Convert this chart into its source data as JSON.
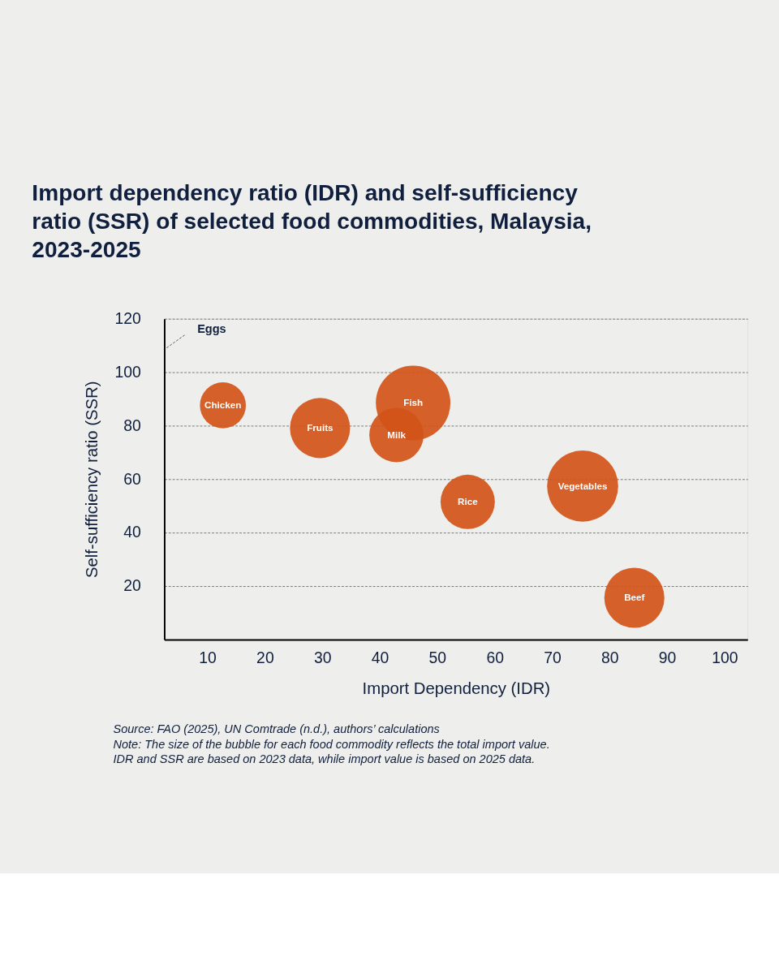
{
  "chart_data": {
    "type": "bubble",
    "title": "Import dependency ratio (IDR) and self-sufficiency ratio (SSR) of selected food commodities, Malaysia, 2023-2025",
    "xlabel": "Import Dependency (IDR)",
    "ylabel": "Self-sufficiency ratio (SSR)",
    "xlim": [
      2.5,
      104
    ],
    "ylim": [
      0,
      120
    ],
    "xticks": [
      10,
      20,
      30,
      40,
      50,
      60,
      70,
      80,
      90,
      100
    ],
    "yticks": [
      20,
      40,
      60,
      80,
      100,
      120
    ],
    "grid": "y",
    "legend": false,
    "series": [
      {
        "name": "Chicken",
        "color": "#d35418",
        "x": [
          12.7
        ],
        "values": [
          87.6
        ],
        "sizes": [
          0.38
        ]
      },
      {
        "name": "Fruits",
        "color": "#d35418",
        "x": [
          29.6
        ],
        "values": [
          79.1
        ],
        "sizes": [
          0.65
        ]
      },
      {
        "name": "Fish",
        "color": "#d35418",
        "x": [
          45.8
        ],
        "values": [
          88.5
        ],
        "sizes": [
          1
        ]
      },
      {
        "name": "Milk",
        "color": "#d35418",
        "x": [
          42.9
        ],
        "values": [
          76.5
        ],
        "sizes": [
          0.53
        ]
      },
      {
        "name": "Rice",
        "color": "#d35418",
        "x": [
          55.3
        ],
        "values": [
          51.5
        ],
        "sizes": [
          0.53
        ]
      },
      {
        "name": "Vegetables",
        "color": "#d35418",
        "x": [
          75.3
        ],
        "values": [
          57.4
        ],
        "sizes": [
          0.91
        ]
      },
      {
        "name": "Beef",
        "color": "#d35418",
        "x": [
          84.3
        ],
        "values": [
          15.6
        ],
        "sizes": [
          0.65
        ]
      }
    ],
    "annotations": [
      "Eggs",
      "Source: FAO (2025), UN Comtrade (n.d.), authors’ calculations",
      "Note: The size of the bubble for each food commodity reflects the total import value.",
      "IDR and SSR are based on 2023 data, while import value is based on 2025 data."
    ]
  }
}
